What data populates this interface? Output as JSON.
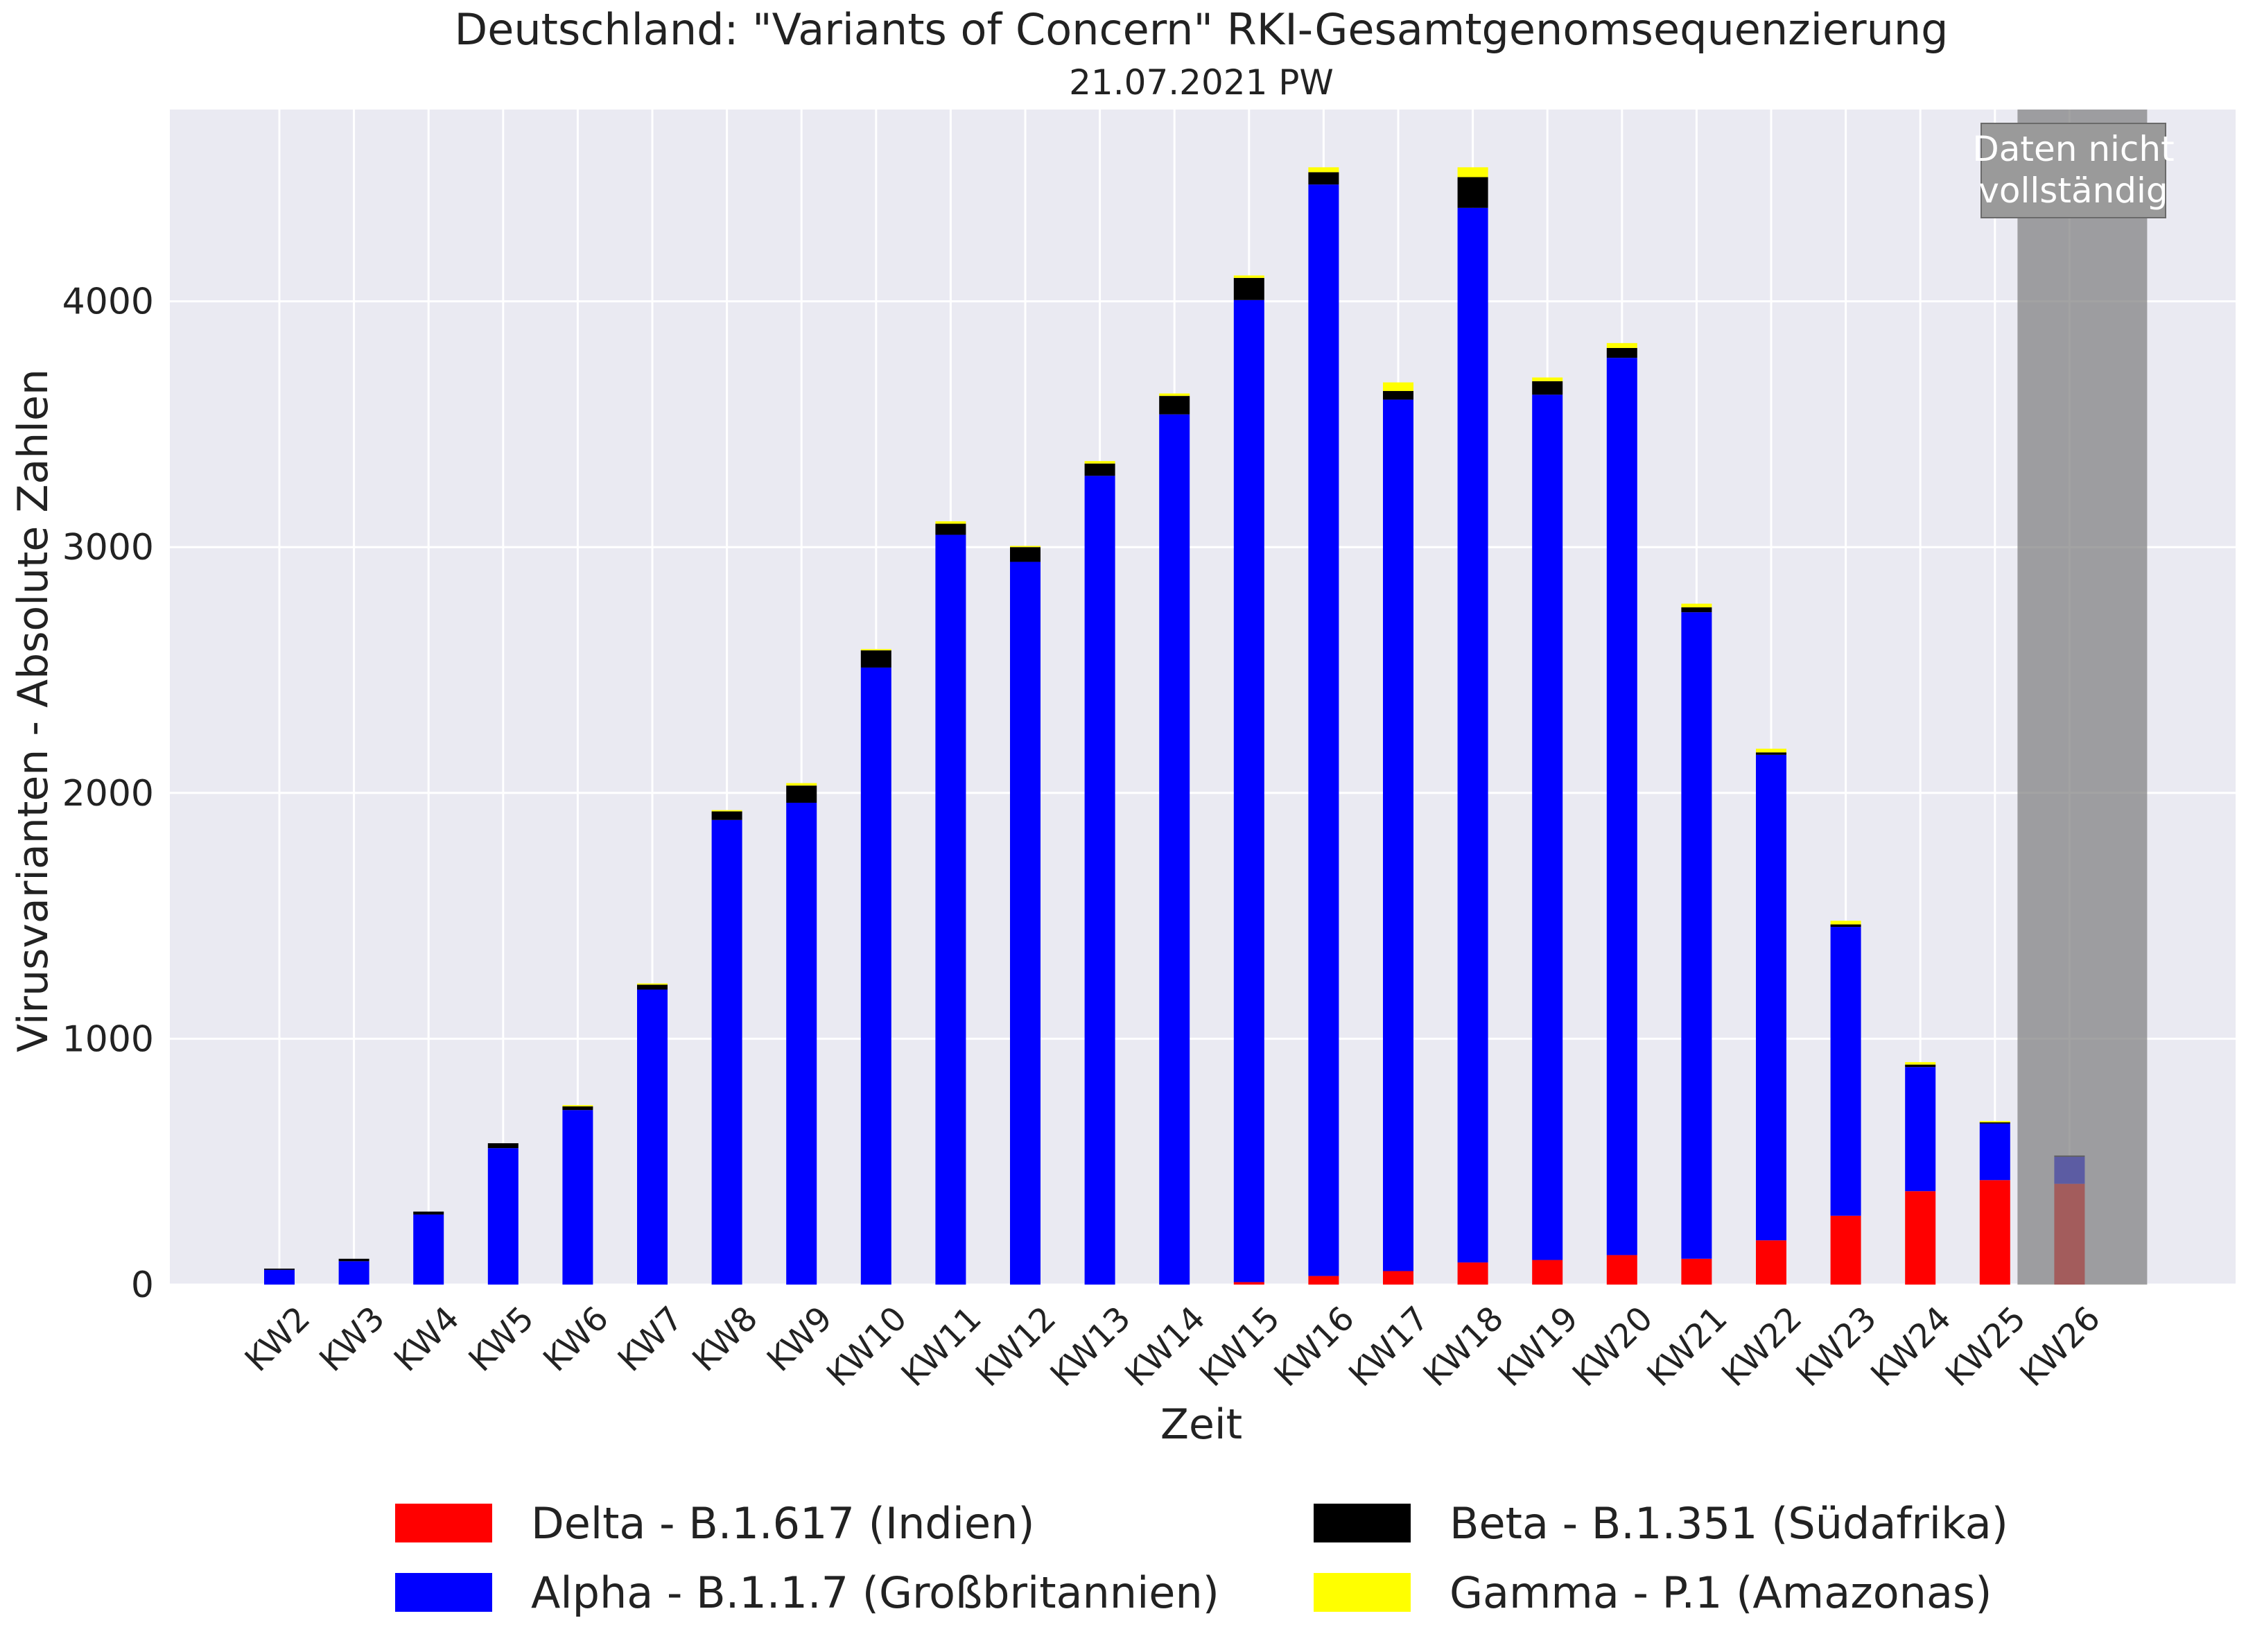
{
  "chart_data": {
    "type": "bar",
    "stacked": true,
    "title": "Deutschland: \"Variants of Concern\" RKI-Gesamtgenomsequenzierung",
    "subtitle": "21.07.2021 PW",
    "xlabel": "Zeit",
    "ylabel": "Virusvarianten - Absolute Zahlen",
    "ylim": [
      0,
      4780
    ],
    "yticks": [
      0,
      1000,
      2000,
      3000,
      4000
    ],
    "grid": true,
    "legend_position": "bottom",
    "categories": [
      "KW2",
      "KW3",
      "KW4",
      "KW5",
      "KW6",
      "KW7",
      "KW8",
      "KW9",
      "KW10",
      "KW11",
      "KW12",
      "KW13",
      "KW14",
      "KW15",
      "KW16",
      "KW17",
      "KW18",
      "KW19",
      "KW20",
      "KW21",
      "KW22",
      "KW23",
      "KW24",
      "KW25",
      "KW26"
    ],
    "series": [
      {
        "name": "Delta - B.1.617 (Indien)",
        "color": "#ff0000",
        "values": [
          0,
          0,
          0,
          0,
          0,
          0,
          0,
          0,
          0,
          0,
          0,
          0,
          0,
          10,
          35,
          55,
          90,
          100,
          120,
          105,
          180,
          280,
          380,
          425,
          410
        ]
      },
      {
        "name": "Alpha - B.1.1.7 (Großbritannien)",
        "color": "#0000ff",
        "values": [
          60,
          95,
          285,
          555,
          710,
          1200,
          1890,
          1960,
          2510,
          3050,
          2940,
          3290,
          3540,
          3995,
          4440,
          3545,
          4290,
          3520,
          3650,
          2630,
          1975,
          1175,
          505,
          230,
          110
        ]
      },
      {
        "name": "Beta - B.1.351 (Südafrika)",
        "color": "#000000",
        "values": [
          5,
          10,
          12,
          20,
          15,
          20,
          35,
          70,
          70,
          45,
          60,
          50,
          75,
          90,
          50,
          35,
          125,
          55,
          40,
          20,
          10,
          10,
          10,
          5,
          5
        ]
      },
      {
        "name": "Gamma - P.1 (Amazonas)",
        "color": "#ffff00",
        "values": [
          0,
          0,
          0,
          0,
          5,
          5,
          5,
          10,
          5,
          10,
          5,
          10,
          10,
          10,
          20,
          35,
          40,
          15,
          20,
          15,
          15,
          15,
          10,
          5,
          0
        ]
      }
    ],
    "incomplete_region": {
      "from": "KW26",
      "to": "KW26",
      "label_lines": [
        "Daten nicht",
        "vollständig"
      ]
    }
  }
}
